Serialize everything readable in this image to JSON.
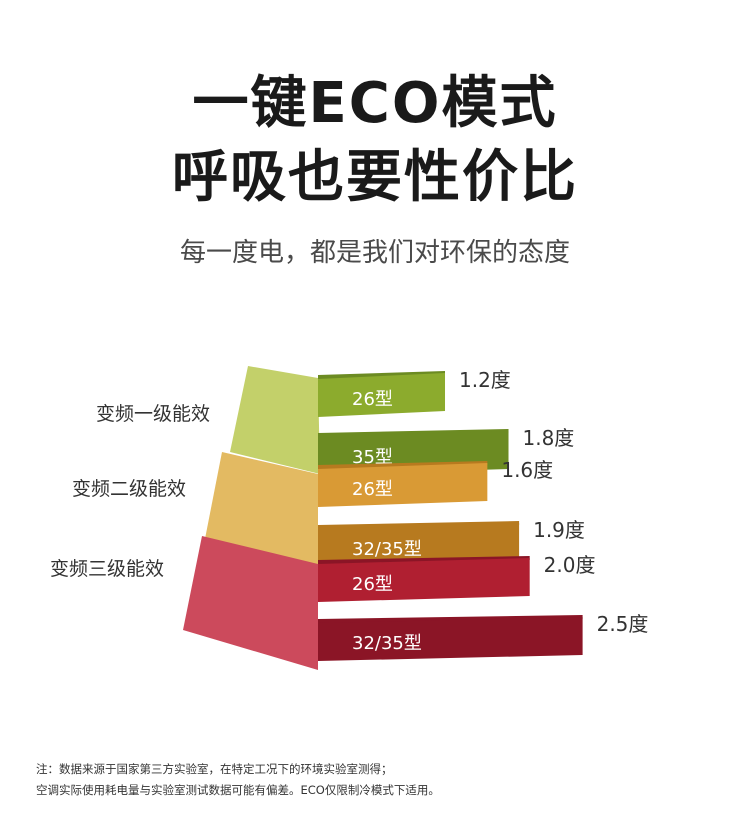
{
  "title_line1": "一键ECO模式",
  "title_line2": "呼吸也要性价比",
  "subtitle": "每一度电，都是我们对环保的态度",
  "colors": {
    "tier1": {
      "face": "#8cab2d",
      "front": "#c3d06a",
      "top": "#6c8b22"
    },
    "tier2": {
      "face": "#d99a35",
      "front": "#e3ba62",
      "top": "#b77a1f"
    },
    "tier3": {
      "face": "#b01f31",
      "front": "#cc4a5c",
      "top": "#8b1526"
    }
  },
  "chart_data": {
    "type": "bar",
    "orientation": "horizontal",
    "unit": "度",
    "groups": [
      {
        "tier": "变频一级能效",
        "bars": [
          {
            "model": "26型",
            "value": 1.2,
            "label": "1.2度"
          },
          {
            "model": "35型",
            "value": 1.8,
            "label": "1.8度"
          }
        ]
      },
      {
        "tier": "变频二级能效",
        "bars": [
          {
            "model": "26型",
            "value": 1.6,
            "label": "1.6度"
          },
          {
            "model": "32/35型",
            "value": 1.9,
            "label": "1.9度"
          }
        ]
      },
      {
        "tier": "变频三级能效",
        "bars": [
          {
            "model": "26型",
            "value": 2.0,
            "label": "2.0度"
          },
          {
            "model": "32/35型",
            "value": 2.5,
            "label": "2.5度"
          }
        ]
      }
    ]
  },
  "notes": {
    "line1": "注：数据来源于国家第三方实验室，在特定工况下的环境实验室测得；",
    "line2": "空调实际使用耗电量与实验室测试数据可能有偏差。ECO仅限制冷模式下适用。"
  }
}
